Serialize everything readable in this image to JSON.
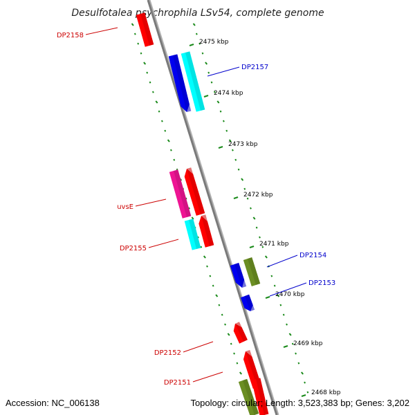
{
  "title": "Desulfotalea psychrophila LSv54, complete genome",
  "footer": {
    "accession": "Accession: NC_006138",
    "summary": "Topology: circular; Length: 3,523,383 bp; Genes: 3,202"
  },
  "colors": {
    "backbone": "#7a7a7a",
    "tick": "#1a8a1a",
    "red": "#ff0000",
    "blue": "#0000ee",
    "cyan": "#00ffff",
    "magenta": "#ee1493",
    "olive": "#6b8e23",
    "label_red": "#cc0000",
    "label_blue": "#0000cc"
  },
  "kbp_labels": [
    "2475 kbp",
    "2474 kbp",
    "2473 kbp",
    "2472 kbp",
    "2471 kbp",
    "2470 kbp",
    "2469 kbp",
    "2468 kbp"
  ],
  "gene_labels": [
    {
      "name": "DP2158",
      "color": "label_red"
    },
    {
      "name": "DP2157",
      "color": "label_blue"
    },
    {
      "name": "uvsE",
      "color": "label_red"
    },
    {
      "name": "DP2155",
      "color": "label_red"
    },
    {
      "name": "DP2154",
      "color": "label_blue"
    },
    {
      "name": "DP2153",
      "color": "label_blue"
    },
    {
      "name": "DP2152",
      "color": "label_red"
    },
    {
      "name": "DP2151",
      "color": "label_red"
    }
  ],
  "genes": [
    {
      "color": "red"
    },
    {
      "color": "blue"
    },
    {
      "color": "cyan"
    },
    {
      "color": "magenta"
    },
    {
      "color": "red"
    },
    {
      "color": "cyan"
    },
    {
      "color": "red"
    },
    {
      "color": "blue"
    },
    {
      "color": "olive"
    },
    {
      "color": "blue"
    },
    {
      "color": "red"
    },
    {
      "color": "red"
    },
    {
      "color": "red"
    },
    {
      "color": "olive"
    }
  ]
}
